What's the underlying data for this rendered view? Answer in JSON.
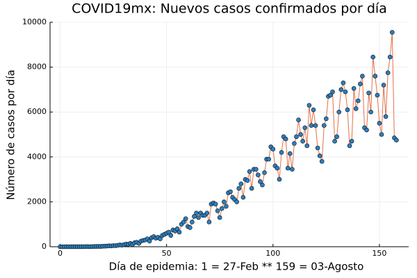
{
  "chart_data": {
    "type": "line",
    "title": "COVID19mx: Nuevos casos confirmados por día",
    "x_label": "Día de epidemia: 1 = 27-Feb ** 159 = 03-Agosto",
    "y_label": "Número de casos por día",
    "x": [
      0,
      1,
      2,
      3,
      4,
      5,
      6,
      7,
      8,
      9,
      10,
      11,
      12,
      13,
      14,
      15,
      16,
      17,
      18,
      19,
      20,
      21,
      22,
      23,
      24,
      25,
      26,
      27,
      28,
      29,
      30,
      31,
      32,
      33,
      34,
      35,
      36,
      37,
      38,
      39,
      40,
      41,
      42,
      43,
      44,
      45,
      46,
      47,
      48,
      49,
      50,
      51,
      52,
      53,
      54,
      55,
      56,
      57,
      58,
      59,
      60,
      61,
      62,
      63,
      64,
      65,
      66,
      67,
      68,
      69,
      70,
      71,
      72,
      73,
      74,
      75,
      76,
      77,
      78,
      79,
      80,
      81,
      82,
      83,
      84,
      85,
      86,
      87,
      88,
      89,
      90,
      91,
      92,
      93,
      94,
      95,
      96,
      97,
      98,
      99,
      100,
      101,
      102,
      103,
      104,
      105,
      106,
      107,
      108,
      109,
      110,
      111,
      112,
      113,
      114,
      115,
      116,
      117,
      118,
      119,
      120,
      121,
      122,
      123,
      124,
      125,
      126,
      127,
      128,
      129,
      130,
      131,
      132,
      133,
      134,
      135,
      136,
      137,
      138,
      139,
      140,
      141,
      142,
      143,
      144,
      145,
      146,
      147,
      148,
      149,
      150,
      151,
      152,
      153,
      154,
      155,
      156,
      157,
      158
    ],
    "series": [
      {
        "color": "#e26f46",
        "marker_color": "#2a7fc0",
        "values": [
          0,
          0,
          0,
          1,
          0,
          2,
          1,
          2,
          3,
          2,
          3,
          4,
          5,
          6,
          4,
          8,
          10,
          12,
          15,
          12,
          20,
          25,
          30,
          40,
          35,
          50,
          45,
          60,
          80,
          70,
          90,
          120,
          110,
          150,
          100,
          180,
          200,
          150,
          250,
          280,
          300,
          350,
          250,
          400,
          450,
          380,
          420,
          350,
          500,
          550,
          600,
          650,
          500,
          750,
          700,
          800,
          650,
          1000,
          1100,
          1250,
          900,
          850,
          1100,
          1350,
          1500,
          1300,
          1500,
          1400,
          1400,
          1500,
          1100,
          1900,
          1950,
          1900,
          1600,
          1300,
          1700,
          2000,
          1800,
          2400,
          2450,
          2200,
          2100,
          2000,
          2600,
          2800,
          2200,
          3000,
          2950,
          3350,
          2600,
          3450,
          3450,
          3200,
          2900,
          2750,
          3300,
          3900,
          3900,
          4450,
          4350,
          3600,
          3500,
          3000,
          4200,
          4900,
          4800,
          3500,
          4150,
          3450,
          4600,
          4900,
          5650,
          5000,
          4700,
          5300,
          4500,
          6300,
          5400,
          6100,
          5400,
          4400,
          4050,
          3800,
          5400,
          5700,
          6700,
          6750,
          6900,
          4700,
          4900,
          6000,
          7000,
          7300,
          6900,
          6100,
          4500,
          4700,
          7050,
          6150,
          6500,
          7250,
          7600,
          5300,
          5200,
          6850,
          6000,
          8450,
          7600,
          6750,
          5500,
          5000,
          7200,
          5800,
          7750,
          8450,
          9550,
          4850,
          4750
        ]
      }
    ],
    "xlim": [
      -4.74,
      163.74
    ],
    "xticks": [
      0,
      50,
      100,
      150
    ],
    "ylim": [
      0,
      10000
    ],
    "yticks": [
      0,
      2000,
      4000,
      6000,
      8000,
      10000
    ],
    "grid": true
  }
}
